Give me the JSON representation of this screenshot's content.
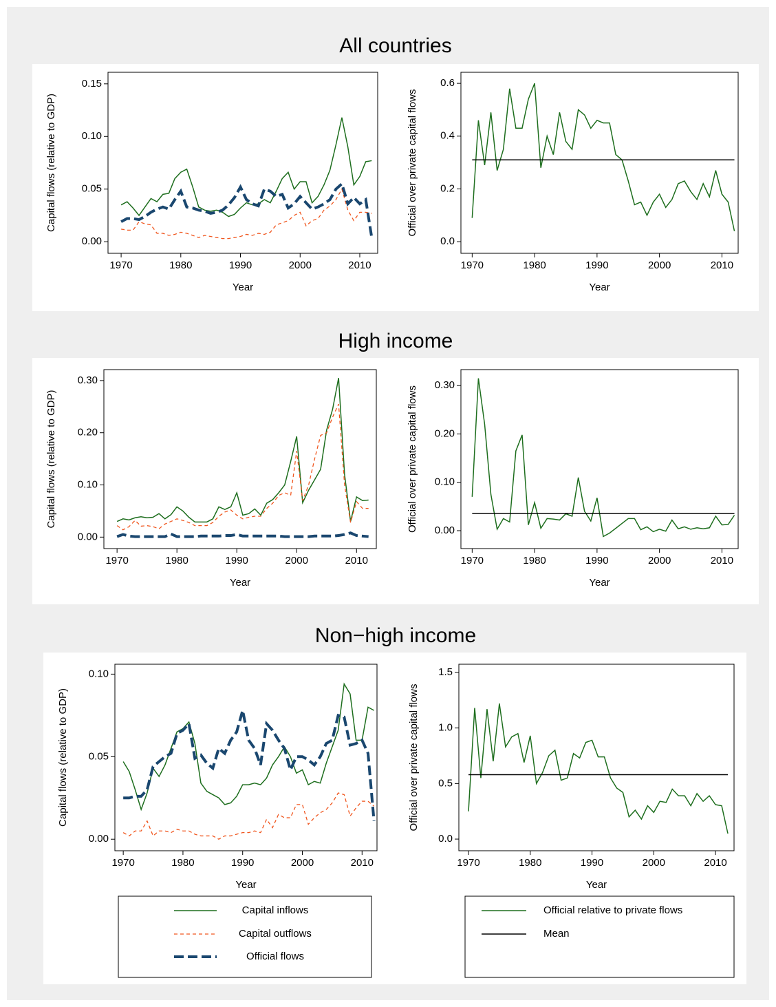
{
  "panel_titles": [
    "All countries",
    "High income",
    "Non−high income"
  ],
  "chart_data": [
    {
      "type": "line",
      "xlabel": "Year",
      "ylabel": "Capital flows (relative  to GDP)",
      "x": [
        1970,
        1971,
        1972,
        1973,
        1974,
        1975,
        1976,
        1977,
        1978,
        1979,
        1980,
        1981,
        1982,
        1983,
        1984,
        1985,
        1986,
        1987,
        1988,
        1989,
        1990,
        1991,
        1992,
        1993,
        1994,
        1995,
        1996,
        1997,
        1998,
        1999,
        2000,
        2001,
        2002,
        2003,
        2004,
        2005,
        2006,
        2007,
        2008,
        2009,
        2010,
        2011,
        2012
      ],
      "xlim": [
        1967.8,
        2013
      ],
      "ylim": [
        -0.011,
        0.161
      ],
      "xticks": [
        1970,
        1980,
        1990,
        2000,
        2010
      ],
      "yticks": [
        {
          "value": 0,
          "label": "0.00"
        },
        {
          "value": 0.05,
          "label": "0.05"
        },
        {
          "value": 0.1,
          "label": "0.10"
        },
        {
          "value": 0.15,
          "label": "0.15"
        }
      ],
      "series": [
        {
          "name": "Capital inflows",
          "color": "#1e6e1e",
          "style": "solid",
          "values": [
            0.035,
            0.038,
            0.032,
            0.025,
            0.033,
            0.041,
            0.038,
            0.045,
            0.046,
            0.06,
            0.066,
            0.069,
            0.052,
            0.033,
            0.03,
            0.029,
            0.03,
            0.028,
            0.024,
            0.026,
            0.032,
            0.037,
            0.035,
            0.036,
            0.04,
            0.037,
            0.048,
            0.06,
            0.066,
            0.05,
            0.057,
            0.057,
            0.037,
            0.043,
            0.054,
            0.068,
            0.092,
            0.118,
            0.09,
            0.054,
            0.062,
            0.076,
            0.077
          ]
        },
        {
          "name": "Capital outflows",
          "color": "#f0561e",
          "style": "dash",
          "values": [
            0.012,
            0.011,
            0.011,
            0.019,
            0.017,
            0.016,
            0.008,
            0.008,
            0.006,
            0.007,
            0.009,
            0.008,
            0.006,
            0.004,
            0.006,
            0.005,
            0.004,
            0.003,
            0.003,
            0.004,
            0.005,
            0.007,
            0.006,
            0.008,
            0.007,
            0.009,
            0.016,
            0.018,
            0.02,
            0.025,
            0.028,
            0.015,
            0.02,
            0.022,
            0.03,
            0.034,
            0.04,
            0.05,
            0.03,
            0.02,
            0.028,
            0.028,
            0.027
          ]
        },
        {
          "name": "Official flows",
          "color": "#1a476f",
          "style": "longdash",
          "values": [
            0.019,
            0.022,
            0.022,
            0.021,
            0.024,
            0.028,
            0.031,
            0.033,
            0.031,
            0.04,
            0.048,
            0.033,
            0.032,
            0.03,
            0.029,
            0.027,
            0.028,
            0.03,
            0.035,
            0.042,
            0.052,
            0.04,
            0.036,
            0.034,
            0.05,
            0.048,
            0.043,
            0.045,
            0.032,
            0.036,
            0.043,
            0.037,
            0.031,
            0.033,
            0.036,
            0.04,
            0.05,
            0.055,
            0.036,
            0.042,
            0.036,
            0.04,
            0.004
          ]
        }
      ]
    },
    {
      "type": "line",
      "xlabel": "Year",
      "ylabel": "Official over private capital flows",
      "x": [
        1970,
        1971,
        1972,
        1973,
        1974,
        1975,
        1976,
        1977,
        1978,
        1979,
        1980,
        1981,
        1982,
        1983,
        1984,
        1985,
        1986,
        1987,
        1988,
        1989,
        1990,
        1991,
        1992,
        1993,
        1994,
        1995,
        1996,
        1997,
        1998,
        1999,
        2000,
        2001,
        2002,
        2003,
        2004,
        2005,
        2006,
        2007,
        2008,
        2009,
        2010,
        2011,
        2012
      ],
      "xlim": [
        1968.2,
        2012.6
      ],
      "ylim": [
        -0.044,
        0.642
      ],
      "xticks": [
        1970,
        1980,
        1990,
        2000,
        2010
      ],
      "yticks": [
        {
          "value": 0,
          "label": "0.0"
        },
        {
          "value": 0.2,
          "label": "0.2"
        },
        {
          "value": 0.4,
          "label": "0.4"
        },
        {
          "value": 0.6,
          "label": "0.6"
        }
      ],
      "series": [
        {
          "name": "Official relative to private flows",
          "color": "#1e6e1e",
          "style": "solid",
          "values": [
            0.09,
            0.46,
            0.29,
            0.49,
            0.27,
            0.35,
            0.58,
            0.43,
            0.43,
            0.54,
            0.6,
            0.28,
            0.4,
            0.33,
            0.49,
            0.38,
            0.35,
            0.5,
            0.48,
            0.43,
            0.46,
            0.45,
            0.45,
            0.33,
            0.31,
            0.23,
            0.14,
            0.15,
            0.1,
            0.15,
            0.18,
            0.13,
            0.16,
            0.22,
            0.23,
            0.19,
            0.16,
            0.22,
            0.17,
            0.27,
            0.18,
            0.15,
            0.04
          ]
        },
        {
          "name": "Mean",
          "color": "#000000",
          "style": "solid",
          "x": [
            1970,
            2012
          ],
          "values": [
            0.31,
            0.31
          ]
        }
      ]
    },
    {
      "type": "line",
      "xlabel": "Year",
      "ylabel": "Capital flows (relative  to GDP)",
      "x": [
        1970,
        1971,
        1972,
        1973,
        1974,
        1975,
        1976,
        1977,
        1978,
        1979,
        1980,
        1981,
        1982,
        1983,
        1984,
        1985,
        1986,
        1987,
        1988,
        1989,
        1990,
        1991,
        1992,
        1993,
        1994,
        1995,
        1996,
        1997,
        1998,
        1999,
        2000,
        2001,
        2002,
        2003,
        2004,
        2005,
        2006,
        2007,
        2008,
        2009,
        2010,
        2011,
        2012
      ],
      "xlim": [
        1967.8,
        2013.3
      ],
      "ylim": [
        -0.022,
        0.321
      ],
      "xticks": [
        1970,
        1980,
        1990,
        2000,
        2010
      ],
      "yticks": [
        {
          "value": 0,
          "label": "0.00"
        },
        {
          "value": 0.1,
          "label": "0.10"
        },
        {
          "value": 0.2,
          "label": "0.20"
        },
        {
          "value": 0.3,
          "label": "0.30"
        }
      ],
      "series": [
        {
          "name": "Capital inflows",
          "color": "#1e6e1e",
          "style": "solid",
          "values": [
            0.03,
            0.035,
            0.033,
            0.037,
            0.039,
            0.037,
            0.038,
            0.045,
            0.035,
            0.043,
            0.058,
            0.05,
            0.038,
            0.029,
            0.029,
            0.029,
            0.035,
            0.058,
            0.053,
            0.058,
            0.085,
            0.042,
            0.045,
            0.054,
            0.042,
            0.065,
            0.072,
            0.085,
            0.1,
            0.145,
            0.193,
            0.066,
            0.09,
            0.11,
            0.13,
            0.205,
            0.245,
            0.305,
            0.12,
            0.03,
            0.077,
            0.07,
            0.071
          ]
        },
        {
          "name": "Capital outflows",
          "color": "#f0561e",
          "style": "dash",
          "values": [
            0.022,
            0.014,
            0.02,
            0.032,
            0.021,
            0.022,
            0.02,
            0.016,
            0.025,
            0.03,
            0.035,
            0.032,
            0.028,
            0.022,
            0.022,
            0.022,
            0.028,
            0.04,
            0.048,
            0.052,
            0.042,
            0.035,
            0.038,
            0.04,
            0.04,
            0.055,
            0.065,
            0.08,
            0.085,
            0.08,
            0.165,
            0.07,
            0.1,
            0.15,
            0.195,
            0.2,
            0.23,
            0.255,
            0.1,
            0.028,
            0.068,
            0.055,
            0.055
          ]
        },
        {
          "name": "Official flows",
          "color": "#1a476f",
          "style": "longdash",
          "values": [
            0.001,
            0.005,
            0.002,
            0.001,
            0.001,
            0.001,
            0.001,
            0.001,
            0.001,
            0.006,
            0.001,
            0.001,
            0.001,
            0.001,
            0.002,
            0.002,
            0.002,
            0.002,
            0.003,
            0.003,
            0.005,
            0.002,
            0.002,
            0.002,
            0.002,
            0.002,
            0.002,
            0.002,
            0.001,
            0.001,
            0.001,
            0.001,
            0.001,
            0.002,
            0.002,
            0.002,
            0.002,
            0.003,
            0.005,
            0.008,
            0.003,
            0.002,
            0.001
          ]
        }
      ]
    },
    {
      "type": "line",
      "xlabel": "Year",
      "ylabel": "Official over private capital flows",
      "x": [
        1970,
        1971,
        1972,
        1973,
        1974,
        1975,
        1976,
        1977,
        1978,
        1979,
        1980,
        1981,
        1982,
        1983,
        1984,
        1985,
        1986,
        1987,
        1988,
        1989,
        1990,
        1991,
        1992,
        1993,
        1994,
        1995,
        1996,
        1997,
        1998,
        1999,
        2000,
        2001,
        2002,
        2003,
        2004,
        2005,
        2006,
        2007,
        2008,
        2009,
        2010,
        2011,
        2012
      ],
      "xlim": [
        1968.2,
        2012.6
      ],
      "ylim": [
        -0.037,
        0.333
      ],
      "xticks": [
        1970,
        1980,
        1990,
        2000,
        2010
      ],
      "yticks": [
        {
          "value": 0,
          "label": "0.00"
        },
        {
          "value": 0.1,
          "label": "0.10"
        },
        {
          "value": 0.2,
          "label": "0.20"
        },
        {
          "value": 0.3,
          "label": "0.30"
        }
      ],
      "series": [
        {
          "name": "Official relative to private flows",
          "color": "#1e6e1e",
          "style": "solid",
          "values": [
            0.07,
            0.315,
            0.22,
            0.075,
            0.003,
            0.025,
            0.018,
            0.165,
            0.198,
            0.012,
            0.058,
            0.005,
            0.025,
            0.024,
            0.022,
            0.035,
            0.03,
            0.11,
            0.04,
            0.02,
            0.068,
            -0.012,
            -0.005,
            0.005,
            0.015,
            0.025,
            0.025,
            0.002,
            0.008,
            -0.002,
            0.003,
            -0.001,
            0.022,
            0.004,
            0.008,
            0.003,
            0.006,
            0.004,
            0.006,
            0.03,
            0.012,
            0.013,
            0.032
          ]
        },
        {
          "name": "Mean",
          "color": "#000000",
          "style": "solid",
          "x": [
            1970,
            2012
          ],
          "values": [
            0.036,
            0.036
          ]
        }
      ]
    },
    {
      "type": "line",
      "xlabel": "Year",
      "ylabel": "Capital flows (relative  to GDP)",
      "legend": "bottom",
      "x": [
        1970,
        1971,
        1972,
        1973,
        1974,
        1975,
        1976,
        1977,
        1978,
        1979,
        1980,
        1981,
        1982,
        1983,
        1984,
        1985,
        1986,
        1987,
        1988,
        1989,
        1990,
        1991,
        1992,
        1993,
        1994,
        1995,
        1996,
        1997,
        1998,
        1999,
        2000,
        2001,
        2002,
        2003,
        2004,
        2005,
        2006,
        2007,
        2008,
        2009,
        2010,
        2011,
        2012
      ],
      "xlim": [
        1968.6,
        2012.5
      ],
      "ylim": [
        -0.007,
        0.106
      ],
      "xticks": [
        1970,
        1980,
        1990,
        2000,
        2010
      ],
      "yticks": [
        {
          "value": 0,
          "label": "0.00"
        },
        {
          "value": 0.05,
          "label": "0.05"
        },
        {
          "value": 0.1,
          "label": "0.10"
        }
      ],
      "series": [
        {
          "name": "Capital inflows",
          "color": "#1e6e1e",
          "style": "solid",
          "values": [
            0.047,
            0.041,
            0.03,
            0.018,
            0.028,
            0.043,
            0.038,
            0.045,
            0.055,
            0.065,
            0.067,
            0.071,
            0.058,
            0.034,
            0.029,
            0.027,
            0.025,
            0.021,
            0.022,
            0.026,
            0.033,
            0.033,
            0.034,
            0.033,
            0.037,
            0.045,
            0.05,
            0.056,
            0.05,
            0.04,
            0.042,
            0.033,
            0.035,
            0.034,
            0.046,
            0.056,
            0.066,
            0.094,
            0.088,
            0.06,
            0.06,
            0.08,
            0.078
          ]
        },
        {
          "name": "Capital outflows",
          "color": "#f0561e",
          "style": "dash",
          "values": [
            0.004,
            0.002,
            0.005,
            0.005,
            0.011,
            0.002,
            0.005,
            0.005,
            0.004,
            0.006,
            0.005,
            0.005,
            0.003,
            0.002,
            0.002,
            0.002,
            0.0,
            0.002,
            0.002,
            0.003,
            0.004,
            0.004,
            0.005,
            0.004,
            0.012,
            0.007,
            0.015,
            0.013,
            0.013,
            0.021,
            0.021,
            0.009,
            0.013,
            0.016,
            0.018,
            0.022,
            0.028,
            0.027,
            0.014,
            0.019,
            0.023,
            0.023,
            0.02
          ]
        },
        {
          "name": "Official flows",
          "color": "#1a476f",
          "style": "longdash",
          "values": [
            0.025,
            0.025,
            0.026,
            0.026,
            0.03,
            0.044,
            0.047,
            0.05,
            0.052,
            0.064,
            0.066,
            0.07,
            0.049,
            0.051,
            0.046,
            0.043,
            0.055,
            0.052,
            0.06,
            0.065,
            0.078,
            0.06,
            0.055,
            0.045,
            0.07,
            0.066,
            0.06,
            0.055,
            0.042,
            0.05,
            0.05,
            0.048,
            0.045,
            0.05,
            0.058,
            0.06,
            0.075,
            0.074,
            0.057,
            0.058,
            0.06,
            0.052,
            0.011
          ]
        }
      ]
    },
    {
      "type": "line",
      "xlabel": "Year",
      "ylabel": "Official over private capital flows",
      "legend": "bottom",
      "x": [
        1970,
        1971,
        1972,
        1973,
        1974,
        1975,
        1976,
        1977,
        1978,
        1979,
        1980,
        1981,
        1982,
        1983,
        1984,
        1985,
        1986,
        1987,
        1988,
        1989,
        1990,
        1991,
        1992,
        1993,
        1994,
        1995,
        1996,
        1997,
        1998,
        1999,
        2000,
        2001,
        2002,
        2003,
        2004,
        2005,
        2006,
        2007,
        2008,
        2009,
        2010,
        2011,
        2012
      ],
      "xlim": [
        1968.44,
        2013
      ],
      "ylim": [
        -0.105,
        1.574
      ],
      "xticks": [
        1970,
        1980,
        1990,
        2000,
        2010
      ],
      "yticks": [
        {
          "value": 0,
          "label": "0.0"
        },
        {
          "value": 0.5,
          "label": "0.5"
        },
        {
          "value": 1,
          "label": "1.0"
        },
        {
          "value": 1.5,
          "label": "1.5"
        }
      ],
      "series": [
        {
          "name": "Official relative to private flows",
          "color": "#1e6e1e",
          "style": "solid",
          "values": [
            0.25,
            1.18,
            0.55,
            1.17,
            0.7,
            1.22,
            0.83,
            0.92,
            0.95,
            0.69,
            0.93,
            0.5,
            0.6,
            0.75,
            0.8,
            0.53,
            0.55,
            0.77,
            0.73,
            0.87,
            0.89,
            0.74,
            0.74,
            0.55,
            0.46,
            0.42,
            0.2,
            0.26,
            0.18,
            0.3,
            0.24,
            0.34,
            0.33,
            0.45,
            0.39,
            0.39,
            0.3,
            0.41,
            0.34,
            0.39,
            0.31,
            0.3,
            0.05
          ]
        },
        {
          "name": "Mean",
          "color": "#000000",
          "style": "solid",
          "x": [
            1970,
            2012
          ],
          "values": [
            0.58,
            0.58
          ]
        }
      ]
    }
  ]
}
